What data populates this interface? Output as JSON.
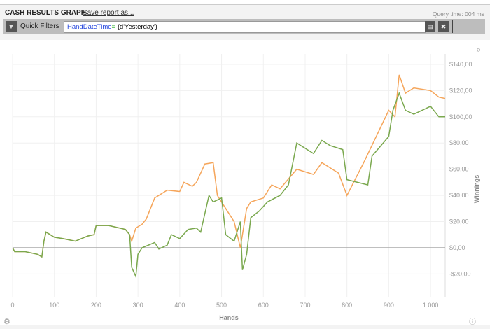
{
  "header": {
    "title": "CASH RESULTS GRAPH",
    "save_link": "Save report as...",
    "query_time": "Query time: 004 ms"
  },
  "filters": {
    "label": "Quick Filters",
    "keyword": "HandDateTime",
    "operator": "=",
    "value": " {d'Yesterday'}",
    "filter_icon": "filter-icon",
    "save_icon": "save-icon",
    "clear_icon": "close-icon"
  },
  "chart_data": {
    "type": "line",
    "xlabel": "Hands",
    "ylabel": "Winnings",
    "xlim": [
      0,
      1035
    ],
    "ylim": [
      -38,
      148
    ],
    "xticks": [
      0,
      100,
      200,
      300,
      400,
      500,
      600,
      700,
      800,
      900,
      1000
    ],
    "xtick_labels": [
      "0",
      "100",
      "200",
      "300",
      "400",
      "500",
      "600",
      "700",
      "800",
      "900",
      "1 000"
    ],
    "yticks": [
      -20,
      0,
      20,
      40,
      60,
      80,
      100,
      120,
      140
    ],
    "ytick_labels": [
      "-$20,00",
      "$0,00",
      "$20,00",
      "$40,00",
      "$60,00",
      "$80,00",
      "$100,00",
      "$120,00",
      "$140,00"
    ],
    "grid": true,
    "series": [
      {
        "color": "#f5a55a",
        "points": [
          [
            0,
            0
          ],
          [
            5,
            -3
          ],
          [
            30,
            -3
          ],
          [
            60,
            -5
          ],
          [
            70,
            -7
          ],
          [
            75,
            5
          ],
          [
            80,
            12
          ],
          [
            100,
            8
          ],
          [
            120,
            7
          ],
          [
            150,
            5
          ],
          [
            180,
            9
          ],
          [
            195,
            10
          ],
          [
            200,
            17
          ],
          [
            230,
            17
          ],
          [
            270,
            14
          ],
          [
            280,
            10
          ],
          [
            285,
            5
          ],
          [
            295,
            15
          ],
          [
            310,
            18
          ],
          [
            320,
            22
          ],
          [
            340,
            38
          ],
          [
            370,
            44
          ],
          [
            400,
            43
          ],
          [
            410,
            50
          ],
          [
            430,
            47
          ],
          [
            440,
            50
          ],
          [
            460,
            64
          ],
          [
            480,
            65
          ],
          [
            490,
            40
          ],
          [
            510,
            30
          ],
          [
            530,
            20
          ],
          [
            545,
            0
          ],
          [
            560,
            30
          ],
          [
            570,
            35
          ],
          [
            600,
            38
          ],
          [
            620,
            48
          ],
          [
            640,
            45
          ],
          [
            680,
            60
          ],
          [
            720,
            56
          ],
          [
            740,
            65
          ],
          [
            780,
            57
          ],
          [
            800,
            40
          ],
          [
            840,
            65
          ],
          [
            870,
            85
          ],
          [
            900,
            105
          ],
          [
            915,
            100
          ],
          [
            925,
            132
          ],
          [
            940,
            118
          ],
          [
            960,
            122
          ],
          [
            1000,
            120
          ],
          [
            1020,
            115
          ],
          [
            1035,
            114
          ]
        ]
      },
      {
        "color": "#7aa84e",
        "points": [
          [
            0,
            0
          ],
          [
            5,
            -3
          ],
          [
            30,
            -3
          ],
          [
            60,
            -5
          ],
          [
            70,
            -7
          ],
          [
            75,
            5
          ],
          [
            80,
            12
          ],
          [
            100,
            8
          ],
          [
            120,
            7
          ],
          [
            150,
            5
          ],
          [
            180,
            9
          ],
          [
            195,
            10
          ],
          [
            200,
            17
          ],
          [
            230,
            17
          ],
          [
            270,
            14
          ],
          [
            280,
            10
          ],
          [
            285,
            -15
          ],
          [
            295,
            -22
          ],
          [
            300,
            -5
          ],
          [
            310,
            0
          ],
          [
            340,
            4
          ],
          [
            350,
            -1
          ],
          [
            370,
            2
          ],
          [
            380,
            10
          ],
          [
            400,
            7
          ],
          [
            420,
            14
          ],
          [
            440,
            15
          ],
          [
            450,
            12
          ],
          [
            470,
            40
          ],
          [
            480,
            35
          ],
          [
            500,
            38
          ],
          [
            510,
            10
          ],
          [
            530,
            5
          ],
          [
            545,
            20
          ],
          [
            550,
            -17
          ],
          [
            560,
            -5
          ],
          [
            570,
            23
          ],
          [
            590,
            28
          ],
          [
            610,
            35
          ],
          [
            640,
            40
          ],
          [
            660,
            48
          ],
          [
            680,
            80
          ],
          [
            720,
            72
          ],
          [
            740,
            82
          ],
          [
            760,
            78
          ],
          [
            790,
            75
          ],
          [
            800,
            52
          ],
          [
            850,
            48
          ],
          [
            860,
            70
          ],
          [
            900,
            85
          ],
          [
            910,
            105
          ],
          [
            925,
            118
          ],
          [
            940,
            105
          ],
          [
            960,
            102
          ],
          [
            1000,
            108
          ],
          [
            1020,
            100
          ],
          [
            1035,
            100
          ]
        ]
      }
    ]
  }
}
